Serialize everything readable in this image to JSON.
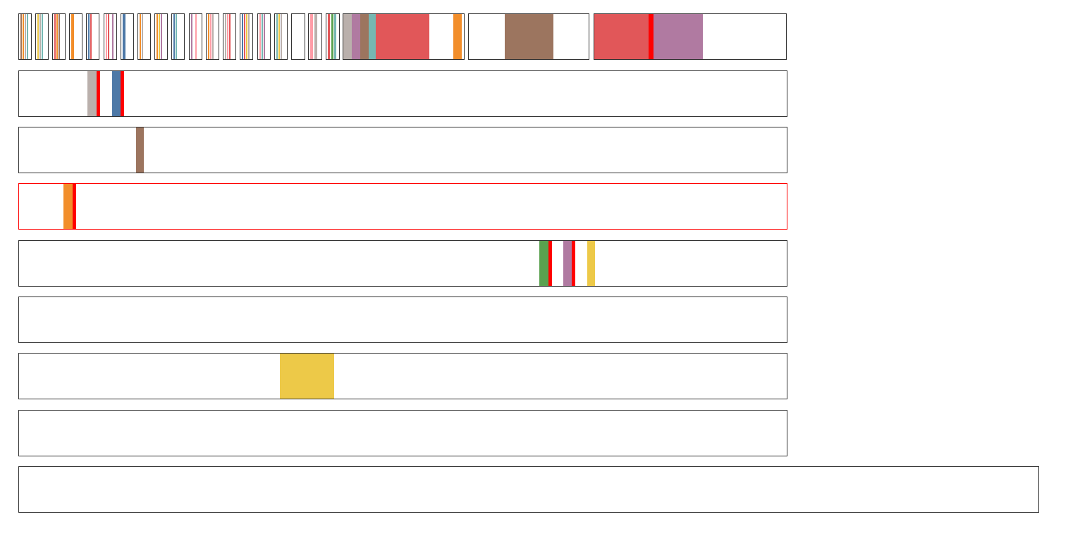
{
  "palette": {
    "red": "#e15759",
    "orange": "#f28e2b",
    "yellow": "#edc948",
    "green": "#59a14f",
    "teal": "#76b7b2",
    "blue": "#4e79a7",
    "purple": "#b07aa1",
    "pink": "#ff9da7",
    "brown": "#9c755f",
    "gray": "#bab0ac",
    "marker": "#ff0000",
    "border": "#333333",
    "selected_border": "#ff0000"
  },
  "strips": [
    {
      "id": "strip-1",
      "colors": [
        "brown",
        "orange",
        "gray",
        "teal"
      ]
    },
    {
      "id": "strip-2",
      "colors": [
        "yellow",
        "gray",
        "teal"
      ]
    },
    {
      "id": "strip-3",
      "colors": [
        "red",
        "orange",
        "brown"
      ]
    },
    {
      "id": "strip-4",
      "colors": [
        "orange",
        "white"
      ]
    },
    {
      "id": "strip-5",
      "colors": [
        "blue",
        "red",
        "white"
      ]
    },
    {
      "id": "strip-6",
      "colors": [
        "pink",
        "red",
        "white",
        "purple"
      ]
    },
    {
      "id": "strip-7",
      "colors": [
        "blue",
        "white"
      ]
    },
    {
      "id": "strip-8",
      "colors": [
        "orange",
        "gray",
        "white"
      ]
    },
    {
      "id": "strip-9",
      "colors": [
        "orange",
        "yellow",
        "purple"
      ]
    },
    {
      "id": "strip-10",
      "colors": [
        "blue",
        "teal",
        "white"
      ]
    },
    {
      "id": "strip-11",
      "colors": [
        "purple",
        "white",
        "pink"
      ]
    },
    {
      "id": "strip-12",
      "colors": [
        "orange",
        "pink",
        "gray"
      ]
    },
    {
      "id": "strip-13",
      "colors": [
        "gray",
        "pink",
        "red"
      ]
    },
    {
      "id": "strip-14",
      "colors": [
        "blue",
        "red",
        "yellow",
        "gray"
      ]
    },
    {
      "id": "strip-15",
      "colors": [
        "pink",
        "teal",
        "purple"
      ]
    },
    {
      "id": "strip-16",
      "colors": [
        "teal",
        "yellow",
        "gray"
      ]
    },
    {
      "id": "strip-17",
      "colors": [
        "white"
      ]
    },
    {
      "id": "strip-18",
      "colors": [
        "pink",
        "gray"
      ]
    },
    {
      "id": "strip-19",
      "colors": [
        "red",
        "green",
        "teal"
      ]
    },
    {
      "id": "strip-20",
      "colors": [
        "gray",
        "purple",
        "brown",
        "teal",
        "red",
        "red",
        "red",
        "white",
        "white",
        "orange"
      ]
    },
    {
      "id": "strip-21",
      "colors": [
        "white",
        "brown",
        "white"
      ]
    },
    {
      "id": "strip-22",
      "colors": [
        "red",
        "marker",
        "purple",
        "white",
        "white"
      ]
    }
  ],
  "tracks": [
    {
      "id": "track-1",
      "selected": false,
      "stripes": [
        "gray",
        "marker",
        "blue",
        "marker"
      ]
    },
    {
      "id": "track-2",
      "selected": false,
      "stripes": [
        "brown"
      ]
    },
    {
      "id": "track-3",
      "selected": true,
      "stripes": [
        "orange",
        "marker"
      ]
    },
    {
      "id": "track-4",
      "selected": false,
      "stripes": [
        "green",
        "marker",
        "purple",
        "marker",
        "yellow"
      ]
    },
    {
      "id": "track-5",
      "selected": false,
      "stripes": []
    },
    {
      "id": "track-6",
      "selected": false,
      "stripes": [
        "yellow"
      ]
    },
    {
      "id": "track-7",
      "selected": false,
      "stripes": []
    },
    {
      "id": "track-8",
      "selected": false,
      "stripes": []
    }
  ]
}
